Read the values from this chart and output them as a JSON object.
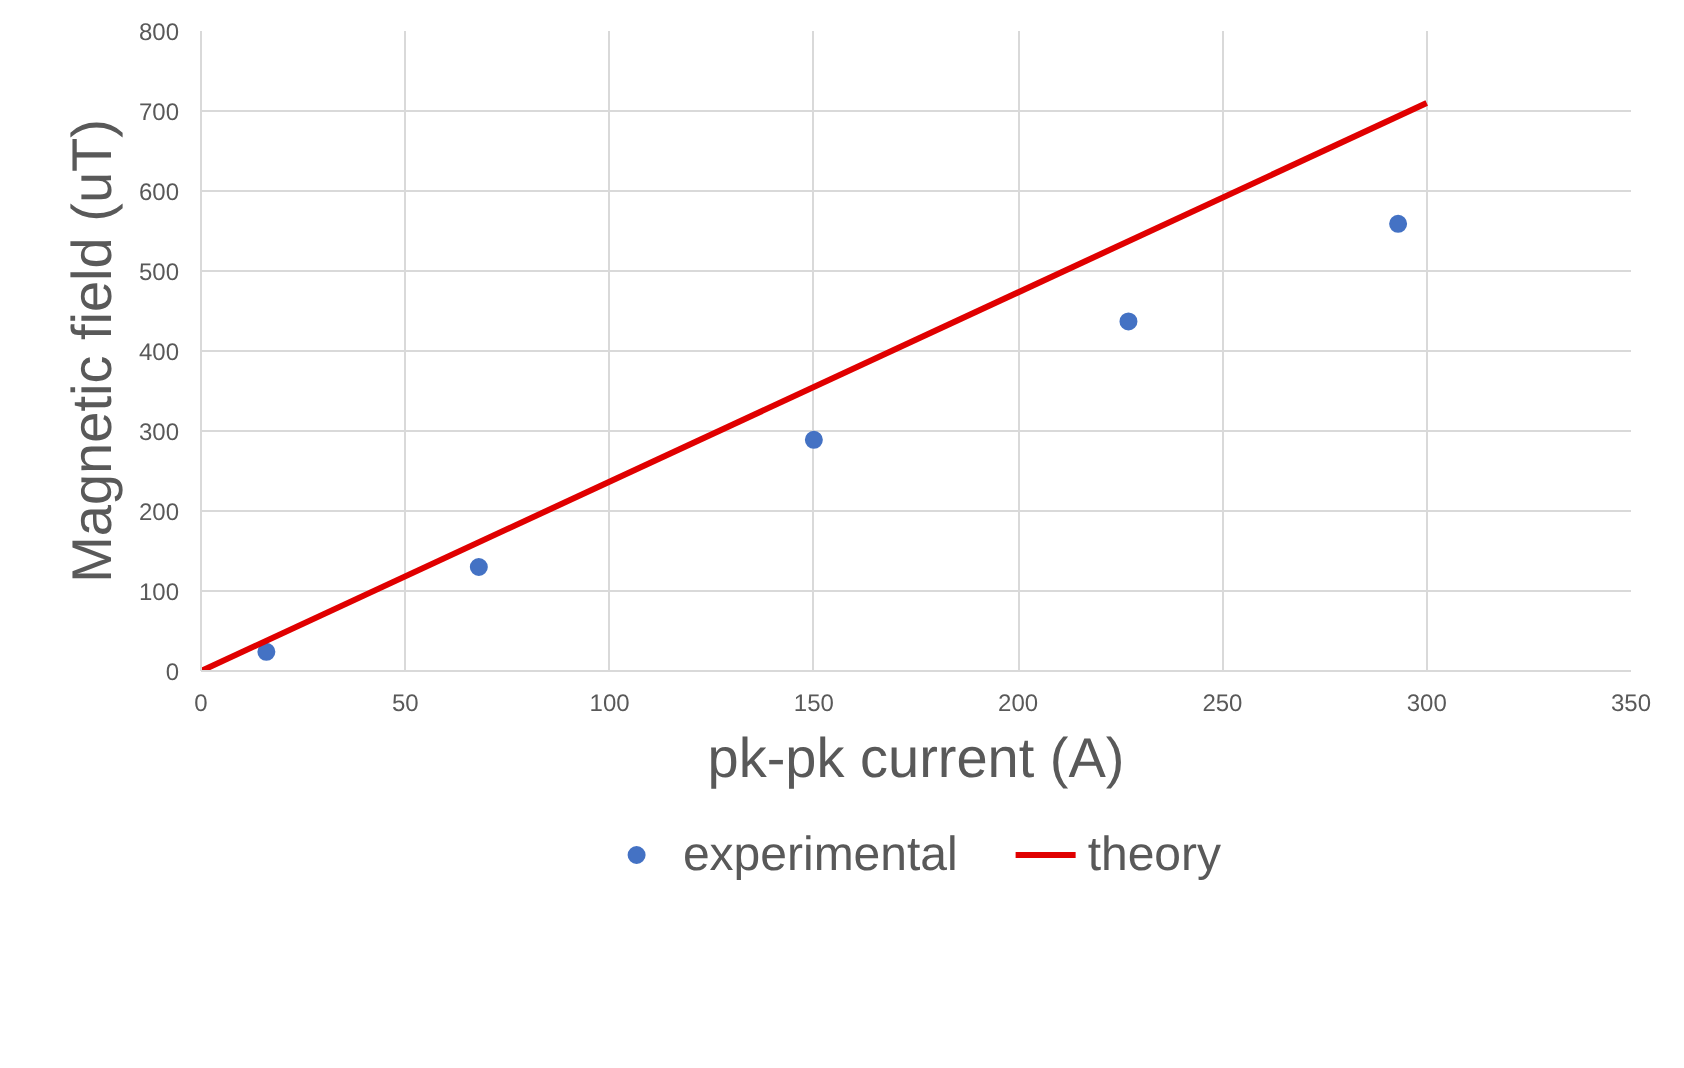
{
  "chart_data": {
    "type": "scatter",
    "xlabel": "pk-pk current (A)",
    "ylabel": "Magnetic field (uT)",
    "xlim": [
      0,
      350
    ],
    "ylim": [
      0,
      800
    ],
    "xticks": [
      0,
      50,
      100,
      150,
      200,
      250,
      300,
      350
    ],
    "yticks": [
      0,
      100,
      200,
      300,
      400,
      500,
      600,
      700,
      800
    ],
    "grid": true,
    "legend": "bottom",
    "series": [
      {
        "name": "experimental",
        "marker": "circle",
        "color": "#4472c4",
        "x": [
          16,
          68,
          150,
          227,
          293
        ],
        "values": [
          24,
          130,
          289,
          437,
          559
        ]
      },
      {
        "name": "theory",
        "type": "line",
        "line_style": "solid",
        "color": "#e00000",
        "x": [
          0,
          300
        ],
        "values": [
          0,
          710
        ]
      }
    ]
  }
}
